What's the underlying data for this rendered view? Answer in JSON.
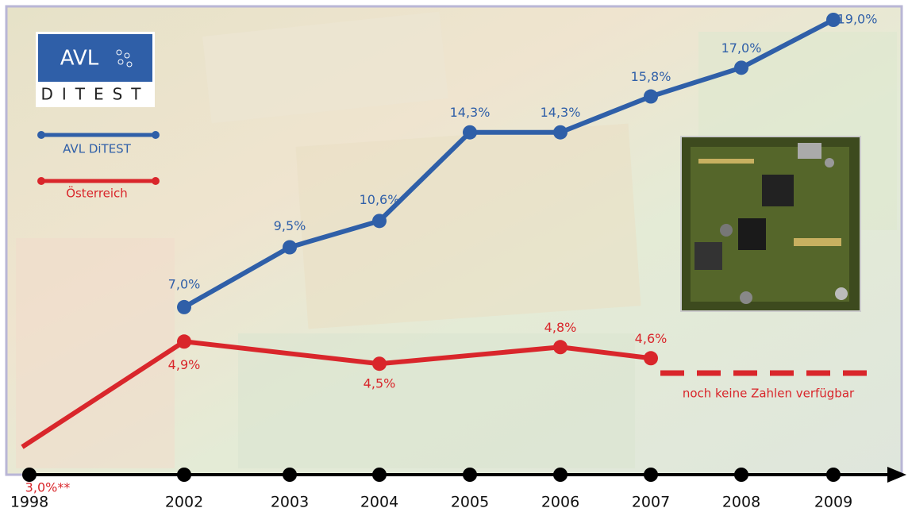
{
  "chart_data": {
    "type": "line",
    "logo": {
      "brand": "AVL",
      "product": "DITEST"
    },
    "categories": [
      "1998",
      "2002",
      "2003",
      "2004",
      "2005",
      "2006",
      "2007",
      "2008",
      "2009"
    ],
    "ylim": [
      0,
      19
    ],
    "y2lim": [
      2.5,
      10.7
    ],
    "series": [
      {
        "name": "AVL DiTEST",
        "color": "#2f5fa8",
        "x": [
          2002,
          2003,
          2004,
          2005,
          2006,
          2007,
          2008,
          2009
        ],
        "values": [
          7.0,
          9.5,
          10.6,
          14.3,
          14.3,
          15.8,
          17.0,
          19.0
        ],
        "value_labels": [
          "7,0%",
          "9,5%",
          "10,6%",
          "14,3%",
          "14,3%",
          "15,8%",
          "17,0%",
          "19,0%"
        ]
      },
      {
        "name": "Österreich",
        "color": "#d9262b",
        "axis": "y2",
        "x": [
          1998,
          2002,
          2004,
          2006,
          2007
        ],
        "values": [
          3.0,
          4.9,
          4.5,
          4.8,
          4.6
        ],
        "value_labels": [
          "3,0%**",
          "4,9%",
          "4,5%",
          "4,8%",
          "4,6%"
        ]
      }
    ],
    "annotation": "noch keine Zahlen verfügbar"
  }
}
